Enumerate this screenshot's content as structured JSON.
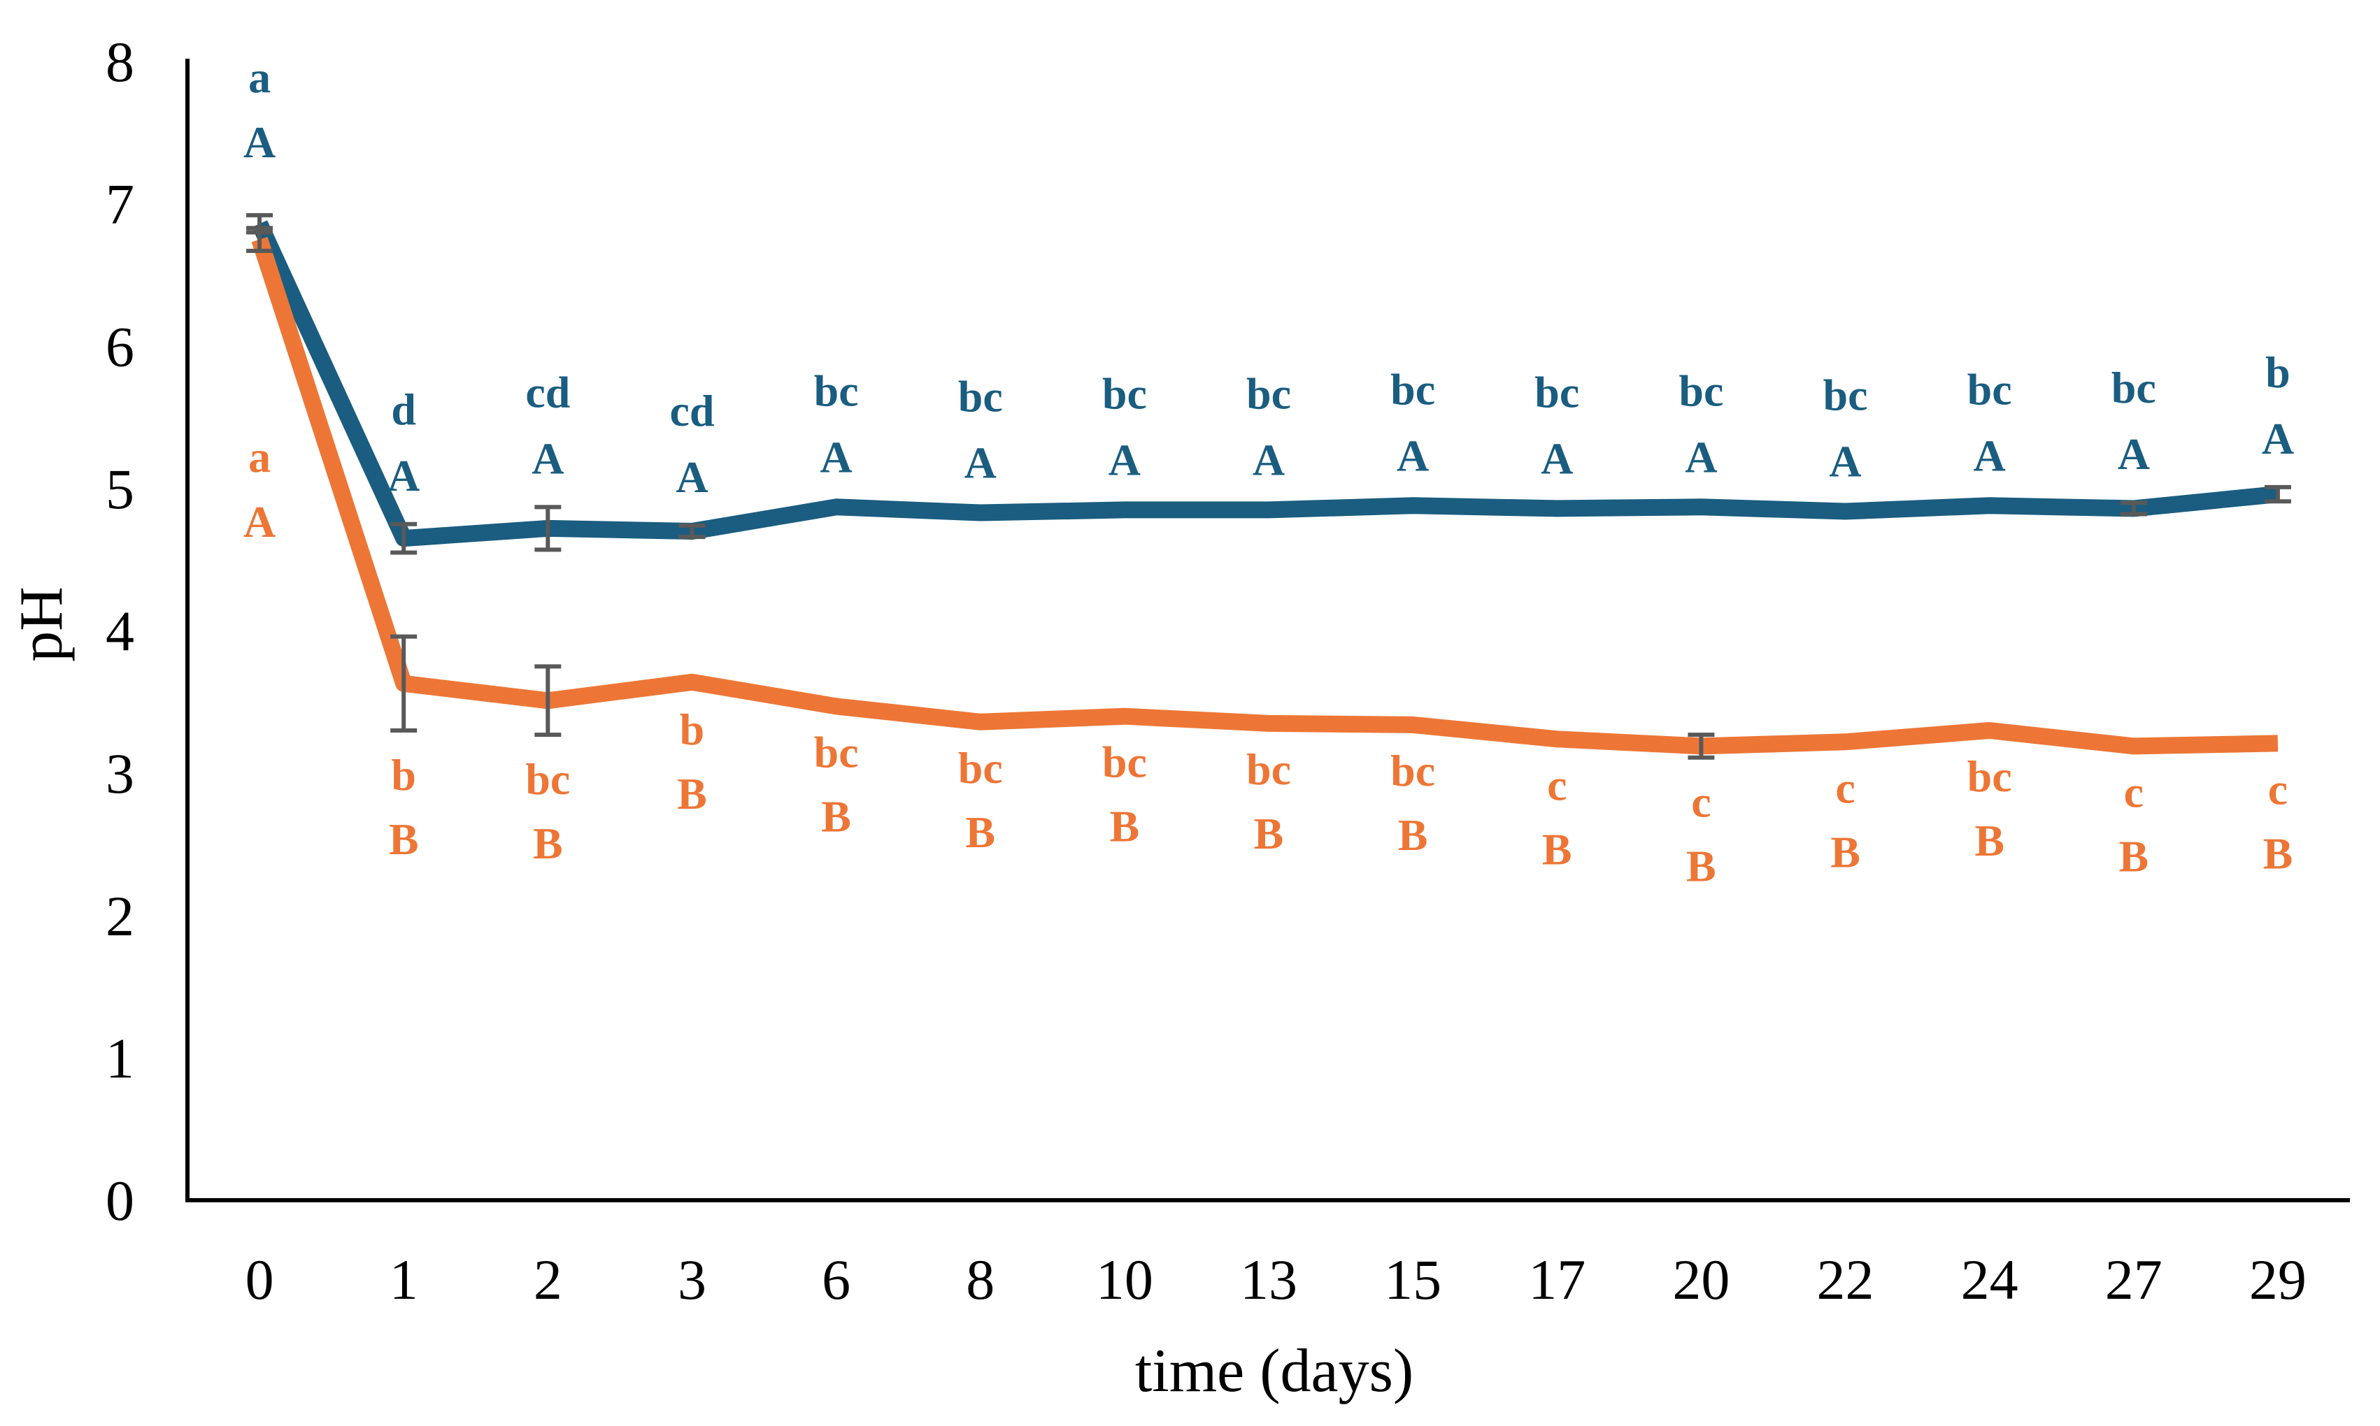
{
  "colors": {
    "blue": "#1A5D80",
    "orange": "#ED7636",
    "errorbar": "#595959",
    "axis": "#000000"
  },
  "chart_data": {
    "type": "line",
    "title": "",
    "xlabel": "time (days)",
    "ylabel": "pH",
    "ylim": [
      0,
      8
    ],
    "yticks": [
      "0",
      "1",
      "2",
      "3",
      "4",
      "5",
      "6",
      "7",
      "8"
    ],
    "categories": [
      "0",
      "1",
      "2",
      "3",
      "6",
      "8",
      "10",
      "13",
      "15",
      "17",
      "20",
      "22",
      "24",
      "27",
      "29"
    ],
    "series": [
      {
        "name": "blue series",
        "color": "#1A5D80",
        "values": [
          6.86,
          4.65,
          4.72,
          4.7,
          4.87,
          4.83,
          4.85,
          4.85,
          4.88,
          4.86,
          4.87,
          4.84,
          4.88,
          4.86,
          4.96
        ],
        "errors": [
          0.06,
          0.1,
          0.15,
          0.04,
          0.01,
          0.01,
          0.01,
          0.01,
          0.01,
          0.01,
          0.01,
          0.01,
          0.01,
          0.04,
          0.05
        ],
        "annotations": {
          "lower": [
            "a",
            "d",
            "cd",
            "cd",
            "bc",
            "bc",
            "bc",
            "bc",
            "bc",
            "bc",
            "bc",
            "bc",
            "bc",
            "bc",
            "b"
          ],
          "upper": [
            "A",
            "A",
            "A",
            "A",
            "A",
            "A",
            "A",
            "A",
            "A",
            "A",
            "A",
            "A",
            "A",
            "A",
            "A"
          ]
        },
        "label_position": "above"
      },
      {
        "name": "orange series",
        "color": "#ED7636",
        "values": [
          6.75,
          3.63,
          3.51,
          3.64,
          3.47,
          3.36,
          3.4,
          3.35,
          3.34,
          3.24,
          3.19,
          3.22,
          3.3,
          3.19,
          3.21
        ],
        "errors": [
          0.08,
          0.33,
          0.24,
          0.02,
          0.01,
          0.01,
          0.01,
          0.01,
          0.01,
          0.01,
          0.08,
          0.01,
          0.01,
          0.01,
          0.01
        ],
        "annotations": {
          "lower": [
            "a",
            "b",
            "bc",
            "b",
            "bc",
            "bc",
            "bc",
            "bc",
            "bc",
            "c",
            "c",
            "c",
            "bc",
            "c",
            "c"
          ],
          "upper": [
            "A",
            "B",
            "B",
            "B",
            "B",
            "B",
            "B",
            "B",
            "B",
            "B",
            "B",
            "B",
            "B",
            "B",
            "B"
          ]
        },
        "label_position": "below"
      }
    ],
    "grid": false,
    "legend": "none"
  }
}
